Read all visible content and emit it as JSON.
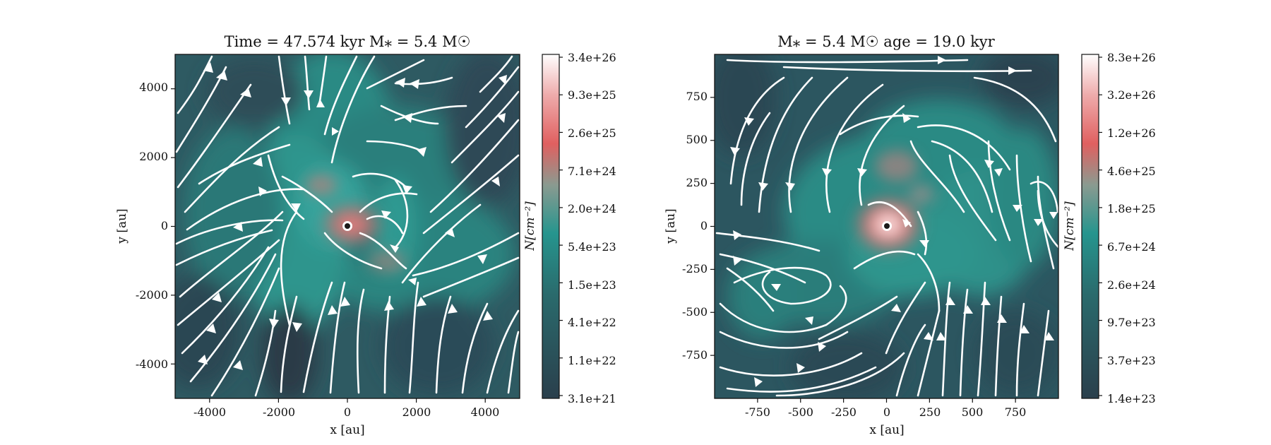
{
  "chart_data": [
    {
      "type": "heatmap",
      "title": "Time = 47.574 kyr    M⁎ = 5.4 M☉",
      "xlabel": "x [au]",
      "ylabel": "y [au]",
      "xlim": [
        -5000,
        5000
      ],
      "ylim": [
        -5000,
        5000
      ],
      "xticks": [
        -4000,
        -2000,
        0,
        2000,
        4000
      ],
      "yticks": [
        -4000,
        -2000,
        0,
        2000,
        4000
      ],
      "xtick_labels": [
        "-4000",
        "-2000",
        "0",
        "2000",
        "4000"
      ],
      "ytick_labels": [
        "-4000",
        "-2000",
        "0",
        "2000",
        "4000"
      ],
      "colorbar": {
        "label": "N[cm⁻²]",
        "scale": "log",
        "ticks": [
          "3.4e+26",
          "9.3e+25",
          "2.6e+25",
          "7.1e+24",
          "2.0e+24",
          "5.4e+23",
          "1.5e+23",
          "4.1e+22",
          "1.1e+22",
          "3.1e+21"
        ]
      },
      "overlay": "streamlines",
      "marker": "sink particle at origin"
    },
    {
      "type": "heatmap",
      "title": "M⁎ = 5.4 M☉          age = 19.0 kyr",
      "xlabel": "x [au]",
      "ylabel": "y [au]",
      "xlim": [
        -1000,
        1000
      ],
      "ylim": [
        -1000,
        1000
      ],
      "xticks": [
        -750,
        -500,
        -250,
        0,
        250,
        500,
        750
      ],
      "yticks": [
        -750,
        -500,
        -250,
        0,
        250,
        500,
        750
      ],
      "xtick_labels": [
        "-750",
        "-500",
        "-250",
        "0",
        "250",
        "500",
        "750"
      ],
      "ytick_labels": [
        "-750",
        "-500",
        "-250",
        "0",
        "250",
        "500",
        "750"
      ],
      "colorbar": {
        "label": "N[cm⁻²]",
        "scale": "log",
        "ticks": [
          "8.3e+26",
          "3.2e+26",
          "1.2e+26",
          "4.6e+25",
          "1.8e+25",
          "6.7e+24",
          "2.6e+24",
          "9.7e+23",
          "3.7e+23",
          "1.4e+23"
        ]
      },
      "overlay": "streamlines",
      "marker": "sink particle at origin"
    }
  ],
  "colors": {
    "cmap_low": "#2a3f4c",
    "cmap_mid": "#26958e",
    "cmap_high1": "#e06060",
    "cmap_top": "#ffffff",
    "streamline": "#ffffff"
  }
}
